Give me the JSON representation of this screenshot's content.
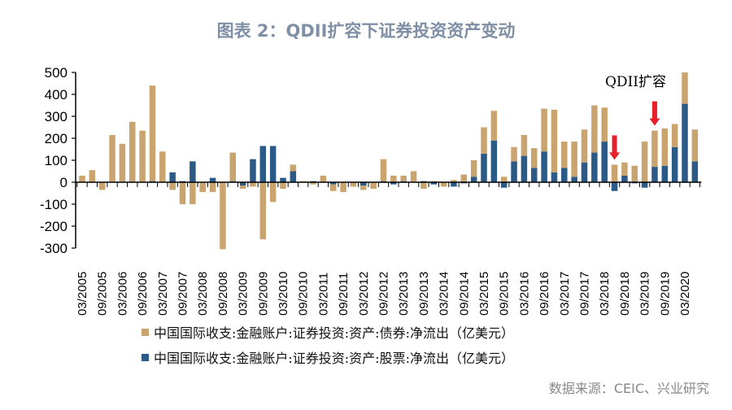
{
  "title": "图表 2：QDII扩容下证券投资资产变动",
  "source": "数据来源：CEIC、兴业研究",
  "chart_data": {
    "type": "bar",
    "stacked": true,
    "title": "图表 2：QDII扩容下证券投资资产变动",
    "ylim": [
      -300,
      500
    ],
    "yticks": [
      -300,
      -200,
      -100,
      0,
      100,
      200,
      300,
      400,
      500
    ],
    "grid": false,
    "legend_position": "bottom",
    "tick_labels": [
      "03/2005",
      "09/2005",
      "03/2006",
      "09/2006",
      "03/2007",
      "09/2007",
      "03/2008",
      "09/2008",
      "03/2009",
      "09/2009",
      "03/2010",
      "09/2010",
      "03/2011",
      "09/2011",
      "03/2012",
      "09/2012",
      "03/2013",
      "09/2013",
      "03/2014",
      "09/2014",
      "03/2015",
      "09/2015",
      "03/2016",
      "09/2016",
      "03/2017",
      "09/2017",
      "03/2018",
      "09/2018",
      "03/2019",
      "09/2019",
      "03/2020"
    ],
    "first_quarter": "03/2005",
    "series": [
      {
        "name": "中国国际收支:金融账户:证券投资:资产:债券:净流出（亿美元）",
        "color": "#c9a46e",
        "values": [
          30,
          55,
          -35,
          215,
          175,
          275,
          235,
          435,
          140,
          -35,
          -100,
          -100,
          -45,
          -45,
          -305,
          130,
          -15,
          -20,
          -260,
          -90,
          -30,
          30,
          5,
          -10,
          30,
          -30,
          -45,
          -20,
          -20,
          -30,
          100,
          30,
          25,
          50,
          -30,
          5,
          -20,
          10,
          35,
          75,
          120,
          135,
          25,
          65,
          95,
          90,
          195,
          285,
          120,
          160,
          150,
          215,
          155,
          80,
          60,
          75,
          185,
          165,
          170,
          105,
          143,
          145
        ]
      },
      {
        "name": "中国国际收支:金融账户:证券投资:资产:股票:净流出（亿美元）",
        "color": "#2b5a86",
        "values": [
          0,
          0,
          0,
          0,
          0,
          0,
          0,
          5,
          0,
          45,
          5,
          95,
          0,
          20,
          0,
          5,
          -15,
          105,
          165,
          165,
          20,
          50,
          0,
          5,
          0,
          -10,
          0,
          0,
          -15,
          0,
          5,
          -10,
          5,
          0,
          5,
          -10,
          0,
          -20,
          -5,
          25,
          130,
          190,
          -25,
          95,
          120,
          65,
          140,
          45,
          65,
          25,
          90,
          135,
          185,
          -40,
          30,
          -5,
          -25,
          70,
          75,
          160,
          357,
          95
        ]
      }
    ],
    "annotations": [
      {
        "text": "QDII扩容",
        "type": "label"
      },
      {
        "type": "arrow",
        "color": "#e8202a",
        "quarter_index": 53
      },
      {
        "type": "arrow",
        "color": "#e8202a",
        "quarter_index": 57
      }
    ]
  }
}
